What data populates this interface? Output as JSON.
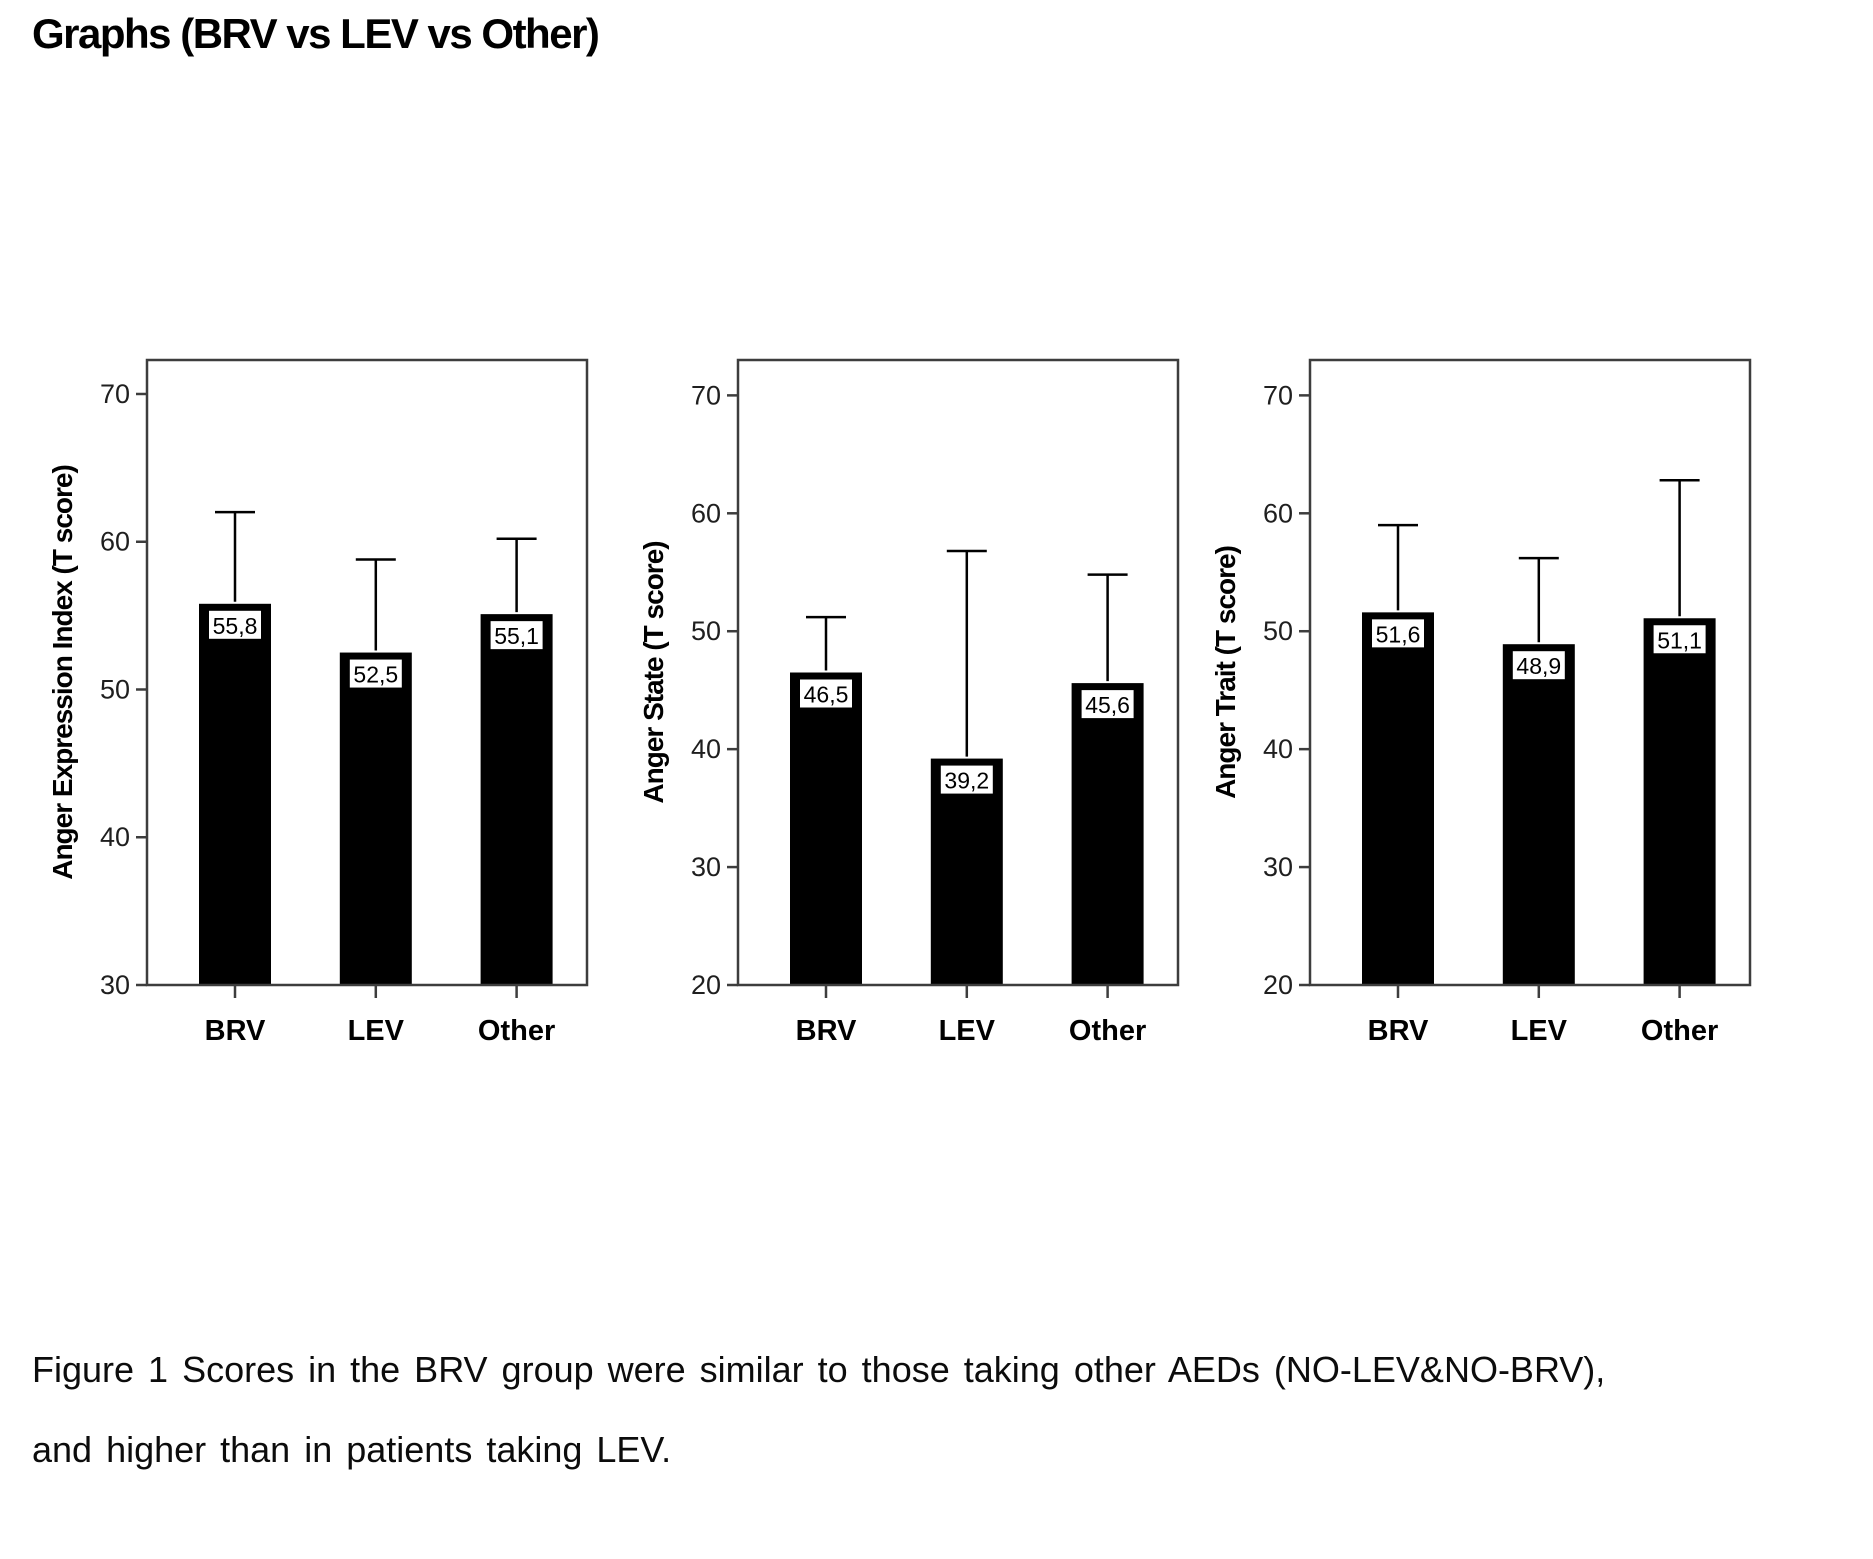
{
  "page_title": "Graphs (BRV vs LEV vs Other)",
  "caption": {
    "line1": "Figure 1 Scores in the BRV group were similar to those taking other AEDs (NO-LEV&NO-BRV),",
    "line2": "and higher than in patients taking LEV."
  },
  "chart_data": [
    {
      "type": "bar",
      "ylabel": "Anger Expression Index (T score)",
      "xlabel": "",
      "categories": [
        "BRV",
        "LEV",
        "Other"
      ],
      "values": [
        55.8,
        52.5,
        55.1
      ],
      "value_labels": [
        "55,8",
        "52,5",
        "55,1"
      ],
      "error_upper_tops": [
        62.0,
        58.8,
        60.2
      ],
      "ylim": [
        30,
        72.3
      ],
      "yticks": [
        30,
        40,
        50,
        60,
        70
      ],
      "grid": "off",
      "legend": "none",
      "bar_color": "#000000",
      "frame_color": "#3d3d3d"
    },
    {
      "type": "bar",
      "ylabel": "Anger State (T score)",
      "xlabel": "",
      "categories": [
        "BRV",
        "LEV",
        "Other"
      ],
      "values": [
        46.5,
        39.2,
        45.6
      ],
      "value_labels": [
        "46,5",
        "39,2",
        "45,6"
      ],
      "error_upper_tops": [
        51.2,
        56.8,
        54.8
      ],
      "ylim": [
        20,
        73
      ],
      "yticks": [
        20,
        30,
        40,
        50,
        60,
        70
      ],
      "grid": "off",
      "legend": "none",
      "bar_color": "#000000",
      "frame_color": "#3d3d3d"
    },
    {
      "type": "bar",
      "ylabel": "Anger Trait (T score)",
      "xlabel": "",
      "categories": [
        "BRV",
        "LEV",
        "Other"
      ],
      "values": [
        51.6,
        48.9,
        51.1
      ],
      "value_labels": [
        "51,6",
        "48,9",
        "51,1"
      ],
      "error_upper_tops": [
        59.0,
        56.2,
        62.8
      ],
      "ylim": [
        20,
        73
      ],
      "yticks": [
        20,
        30,
        40,
        50,
        60,
        70
      ],
      "grid": "off",
      "legend": "none",
      "bar_color": "#000000",
      "frame_color": "#3d3d3d"
    }
  ]
}
